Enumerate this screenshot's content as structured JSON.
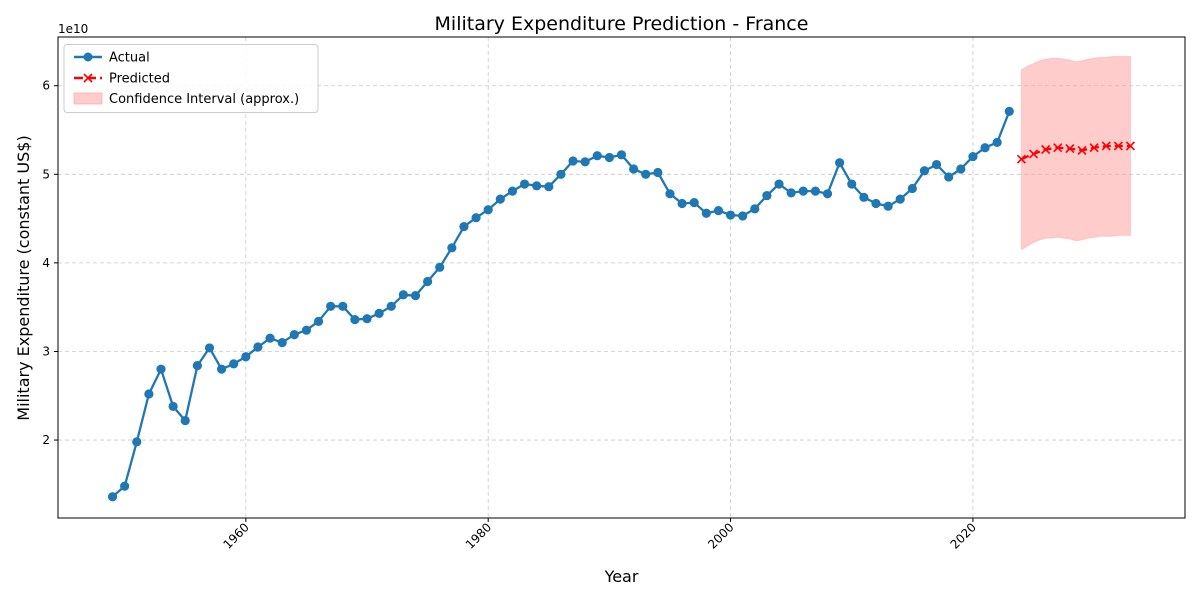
{
  "chart_data": {
    "type": "line",
    "title": "Military Expenditure Prediction - France",
    "xlabel": "Year",
    "ylabel": "Military Expenditure (constant US$)",
    "y_offset_label": "1e10",
    "xlim": [
      1944.5,
      2037.5
    ],
    "ylim": [
      11200000000.0,
      65500000000.0
    ],
    "x_ticks": [
      1960,
      1980,
      2000,
      2020
    ],
    "y_ticks": [
      20000000000.0,
      30000000000.0,
      40000000000.0,
      50000000000.0,
      60000000000.0
    ],
    "y_tick_labels": [
      "2",
      "3",
      "4",
      "5",
      "6"
    ],
    "grid": true,
    "legend_position": "top-left",
    "legend": [
      "Actual",
      "Predicted",
      "Confidence Interval (approx.)"
    ],
    "colors": {
      "actual": "#1f77b4",
      "predicted": "#ff0000",
      "interval": "#ff9a9a"
    },
    "series": [
      {
        "name": "Actual",
        "x": [
          1949,
          1950,
          1951,
          1952,
          1953,
          1954,
          1955,
          1956,
          1957,
          1958,
          1959,
          1960,
          1961,
          1962,
          1963,
          1964,
          1965,
          1966,
          1967,
          1968,
          1969,
          1970,
          1971,
          1972,
          1973,
          1974,
          1975,
          1976,
          1977,
          1978,
          1979,
          1980,
          1981,
          1982,
          1983,
          1984,
          1985,
          1986,
          1987,
          1988,
          1989,
          1990,
          1991,
          1992,
          1993,
          1994,
          1995,
          1996,
          1997,
          1998,
          1999,
          2000,
          2001,
          2002,
          2003,
          2004,
          2005,
          2006,
          2007,
          2008,
          2009,
          2010,
          2011,
          2012,
          2013,
          2014,
          2015,
          2016,
          2017,
          2018,
          2019,
          2020,
          2021,
          2022,
          2023
        ],
        "values": [
          13600000000.0,
          14800000000.0,
          19800000000.0,
          25200000000.0,
          28000000000.0,
          23800000000.0,
          22200000000.0,
          28400000000.0,
          30400000000.0,
          28000000000.0,
          28600000000.0,
          29400000000.0,
          30500000000.0,
          31500000000.0,
          31000000000.0,
          31900000000.0,
          32400000000.0,
          33400000000.0,
          35100000000.0,
          35100000000.0,
          33600000000.0,
          33700000000.0,
          34300000000.0,
          35100000000.0,
          36400000000.0,
          36300000000.0,
          37900000000.0,
          39500000000.0,
          41700000000.0,
          44100000000.0,
          45100000000.0,
          46000000000.0,
          47200000000.0,
          48100000000.0,
          48900000000.0,
          48700000000.0,
          48600000000.0,
          50000000000.0,
          51500000000.0,
          51400000000.0,
          52100000000.0,
          51900000000.0,
          52200000000.0,
          50600000000.0,
          50000000000.0,
          50200000000.0,
          47800000000.0,
          46700000000.0,
          46800000000.0,
          45600000000.0,
          45900000000.0,
          45400000000.0,
          45300000000.0,
          46100000000.0,
          47600000000.0,
          48900000000.0,
          47900000000.0,
          48100000000.0,
          48100000000.0,
          47800000000.0,
          51300000000.0,
          48900000000.0,
          47400000000.0,
          46700000000.0,
          46400000000.0,
          47200000000.0,
          48400000000.0,
          50400000000.0,
          51100000000.0,
          49700000000.0,
          50600000000.0,
          52000000000.0,
          53000000000.0,
          53600000000.0,
          57100000000.0
        ]
      },
      {
        "name": "Predicted",
        "x": [
          2024,
          2025,
          2026,
          2027,
          2028,
          2029,
          2030,
          2031,
          2032,
          2033
        ],
        "values": [
          51700000000.0,
          52300000000.0,
          52800000000.0,
          53000000000.0,
          52900000000.0,
          52700000000.0,
          53000000000.0,
          53200000000.0,
          53200000000.0,
          53200000000.0
        ]
      }
    ],
    "confidence_interval": {
      "name": "Confidence Interval (approx.)",
      "x": [
        2024,
        2024.5,
        2025,
        2025.5,
        2026,
        2026.5,
        2027,
        2027.5,
        2028,
        2028.5,
        2029,
        2029.5,
        2030,
        2030.5,
        2031,
        2031.5,
        2032,
        2032.5,
        2033
      ],
      "lower": [
        41500000000.0,
        41900000000.0,
        42300000000.0,
        42600000000.0,
        42800000000.0,
        42800000000.0,
        42900000000.0,
        42800000000.0,
        42700000000.0,
        42500000000.0,
        42600000000.0,
        42800000000.0,
        42900000000.0,
        43000000000.0,
        43000000000.0,
        43000000000.0,
        43100000000.0,
        43100000000.0,
        43100000000.0
      ],
      "upper": [
        61800000000.0,
        62200000000.0,
        62500000000.0,
        62800000000.0,
        63000000000.0,
        63100000000.0,
        63100000000.0,
        63000000000.0,
        62900000000.0,
        62700000000.0,
        62800000000.0,
        63000000000.0,
        63100000000.0,
        63200000000.0,
        63200000000.0,
        63300000000.0,
        63300000000.0,
        63300000000.0,
        63300000000.0
      ]
    }
  }
}
